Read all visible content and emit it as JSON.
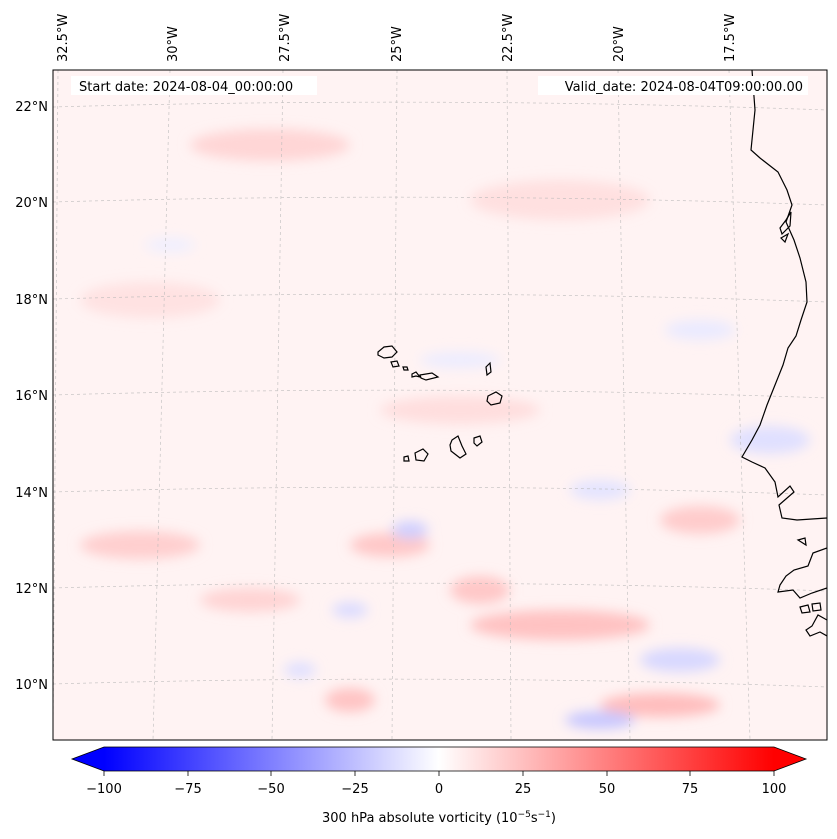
{
  "map": {
    "lon_labels": [
      "32.5°W",
      "30°W",
      "27.5°W",
      "25°W",
      "22.5°W",
      "20°W",
      "17.5°W"
    ],
    "lat_labels": [
      "22°N",
      "20°N",
      "18°N",
      "16°N",
      "14°N",
      "12°N",
      "10°N"
    ],
    "start_date": "Start date: 2024-08-04_00:00:00",
    "valid_date": "Valid_date: 2024-08-04T09:00:00.00",
    "field": "300 hPa absolute vorticity",
    "extent": {
      "lon_min": -32.5,
      "lon_max": -15.5,
      "lat_min": 8.9,
      "lat_max": 22.8
    },
    "gridlines": true,
    "coastline_color": "#000000"
  },
  "colorbar": {
    "ticks": [
      "−100",
      "−75",
      "−50",
      "−25",
      "0",
      "25",
      "50",
      "75",
      "100"
    ],
    "tick_values": [
      -100,
      -75,
      -50,
      -25,
      0,
      25,
      50,
      75,
      100
    ],
    "range": [
      -100,
      100
    ],
    "colormap": "bwr",
    "extend": "both",
    "low_color": "#0000ff",
    "mid_color": "#ffffff",
    "high_color": "#ff0000",
    "label_main": "300 hPa absolute vorticity (10",
    "label_sup1": "−5",
    "label_mid": "s",
    "label_sup2": "−1",
    "label_end": ")"
  }
}
